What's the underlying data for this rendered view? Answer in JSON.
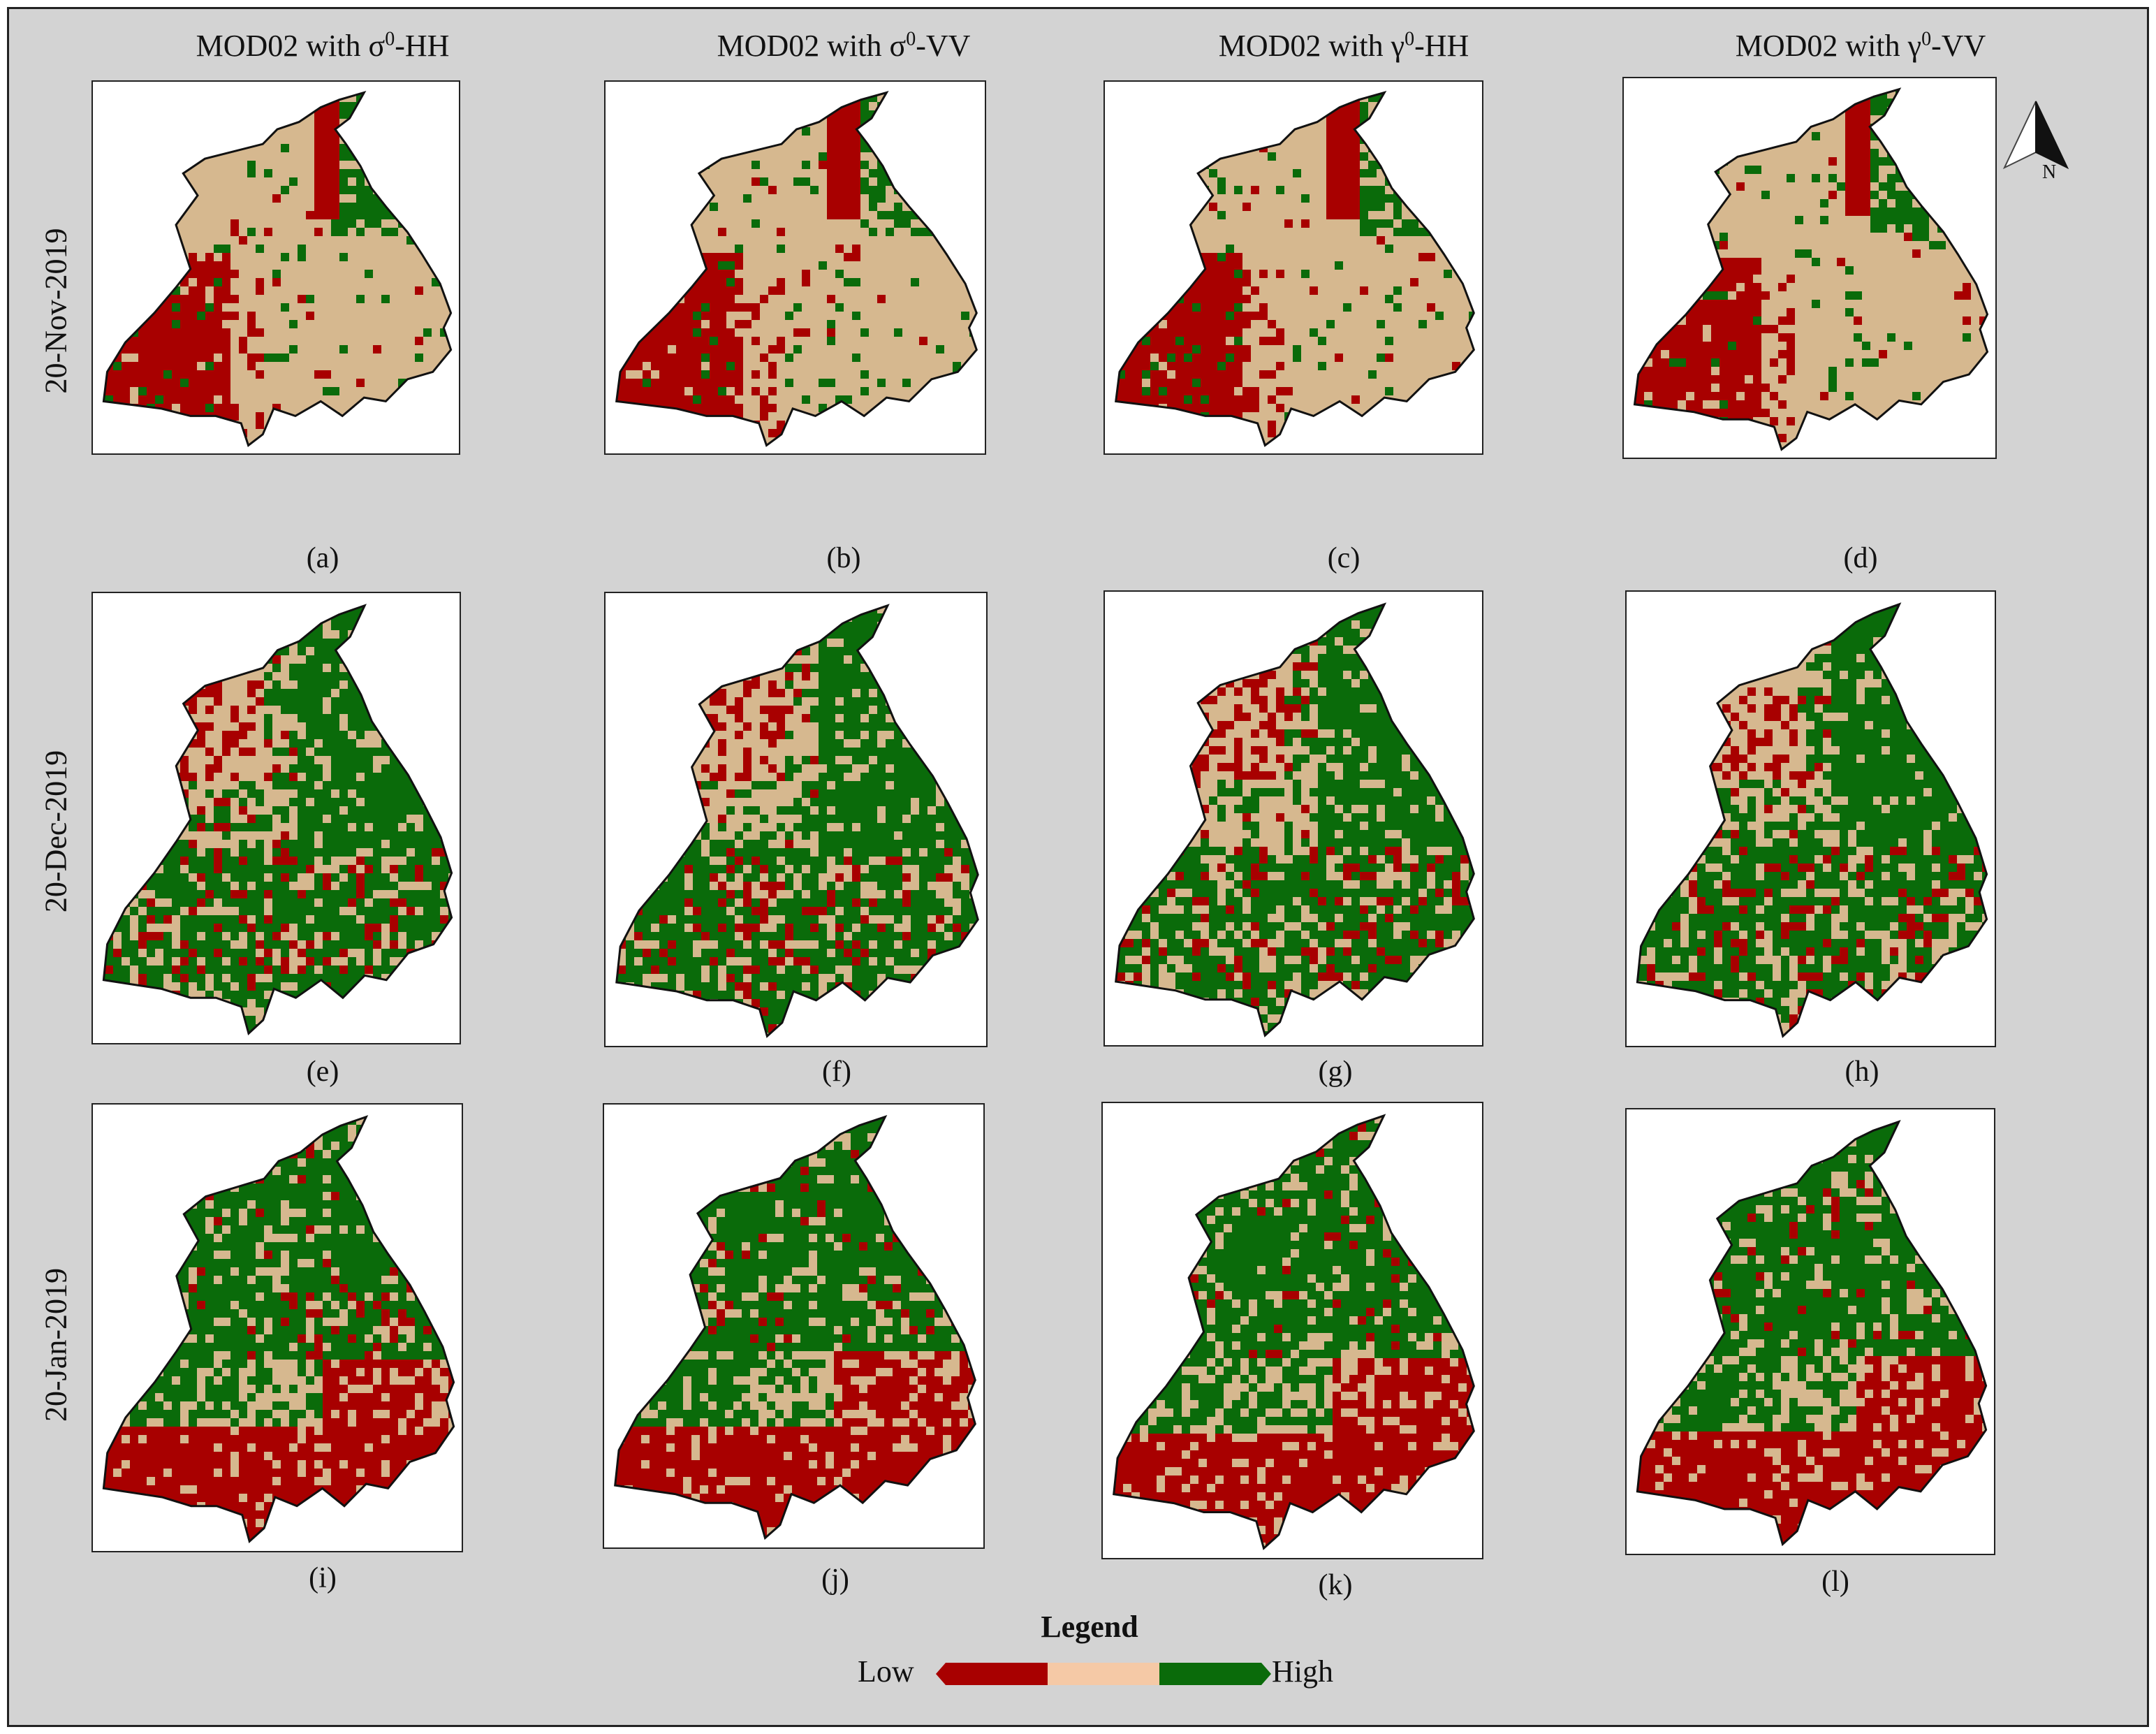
{
  "column_titles": [
    {
      "prefix": "MOD02 with ",
      "symbol": "σ",
      "sup": "0",
      "suffix": "-HH"
    },
    {
      "prefix": "MOD02 with ",
      "symbol": "σ",
      "sup": "0",
      "suffix": "-VV"
    },
    {
      "prefix": "MOD02 with ",
      "symbol": "γ",
      "sup": "0",
      "suffix": "-HH"
    },
    {
      "prefix": "MOD02 with ",
      "symbol": "γ",
      "sup": "0",
      "suffix": "-VV"
    }
  ],
  "row_titles": [
    "20-Nov-2019",
    "20-Dec-2019",
    "20-Jan-2019"
  ],
  "panel_labels": [
    "(a)",
    "(b)",
    "(c)",
    "(d)",
    "(e)",
    "(f)",
    "(g)",
    "(h)",
    "(i)",
    "(j)",
    "(k)",
    "(l)"
  ],
  "north_arrow": {
    "label": "N",
    "icon": "north-arrow-icon"
  },
  "legend": {
    "title": "Legend",
    "low_label": "Low",
    "high_label": "High",
    "colors": {
      "low": "#a80000",
      "mid": "#f5c9a6",
      "high": "#0a6b0a"
    }
  },
  "map_colors": {
    "low": "#a80000",
    "mid": "#d6b88f",
    "high": "#0a6b0a",
    "outline": "#111111"
  }
}
